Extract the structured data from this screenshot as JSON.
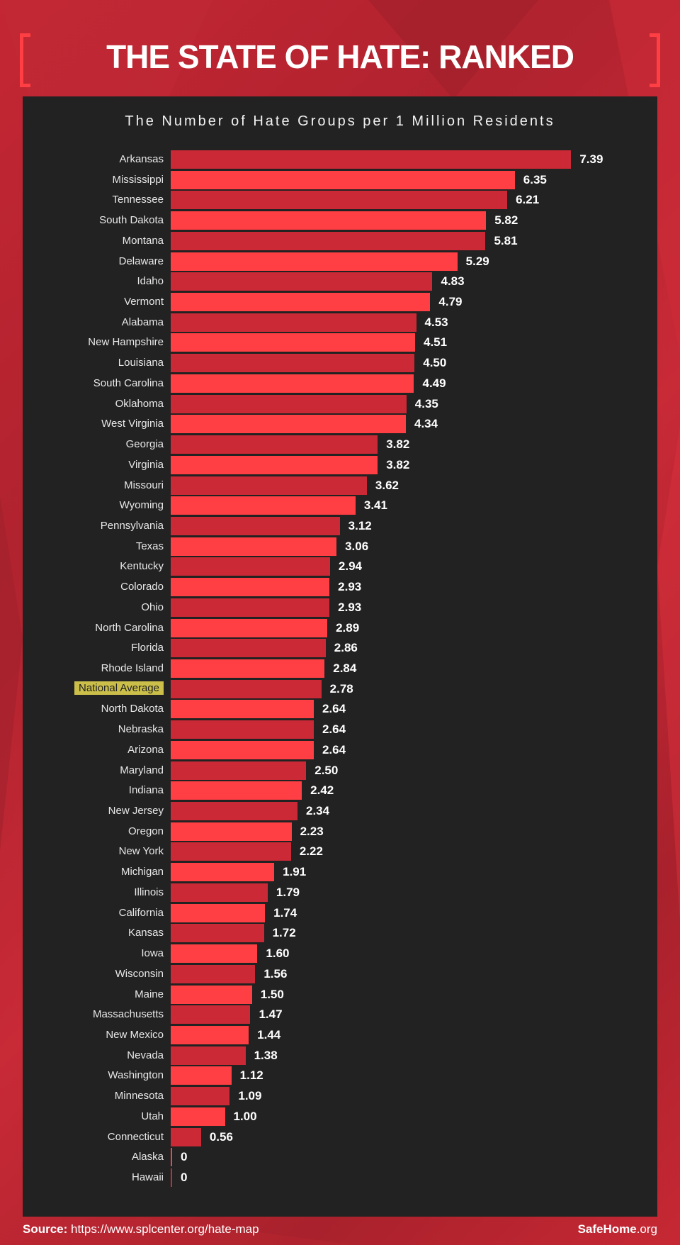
{
  "header": {
    "title": "THE STATE OF HATE: RANKED"
  },
  "chart_data": {
    "type": "bar",
    "orientation": "horizontal",
    "title": "The Number of Hate Groups per 1 Million Residents",
    "xlabel": "",
    "ylabel": "",
    "highlight": "National Average",
    "colors": {
      "dark": "#cc2936",
      "bright": "#ff3f43",
      "highlight": "#cbbf4a"
    },
    "categories": [
      "Arkansas",
      "Mississippi",
      "Tennessee",
      "South Dakota",
      "Montana",
      "Delaware",
      "Idaho",
      "Vermont",
      "Alabama",
      "New Hampshire",
      "Louisiana",
      "South Carolina",
      "Oklahoma",
      "West Virginia",
      "Georgia",
      "Virginia",
      "Missouri",
      "Wyoming",
      "Pennsylvania",
      "Texas",
      "Kentucky",
      "Colorado",
      "Ohio",
      "North Carolina",
      "Florida",
      "Rhode Island",
      "National Average",
      "North Dakota",
      "Nebraska",
      "Arizona",
      "Maryland",
      "Indiana",
      "New Jersey",
      "Oregon",
      "New York",
      "Michigan",
      "Illinois",
      "California",
      "Kansas",
      "Iowa",
      "Wisconsin",
      "Maine",
      "Massachusetts",
      "New Mexico",
      "Nevada",
      "Washington",
      "Minnesota",
      "Utah",
      "Connecticut",
      "Alaska",
      "Hawaii"
    ],
    "values": [
      7.39,
      6.35,
      6.21,
      5.82,
      5.81,
      5.29,
      4.83,
      4.79,
      4.53,
      4.51,
      4.5,
      4.49,
      4.35,
      4.34,
      3.82,
      3.82,
      3.62,
      3.41,
      3.12,
      3.06,
      2.94,
      2.93,
      2.93,
      2.89,
      2.86,
      2.84,
      2.78,
      2.64,
      2.64,
      2.64,
      2.5,
      2.42,
      2.34,
      2.23,
      2.22,
      1.91,
      1.79,
      1.74,
      1.72,
      1.6,
      1.56,
      1.5,
      1.47,
      1.44,
      1.38,
      1.12,
      1.09,
      1.0,
      0.56,
      0,
      0
    ],
    "value_labels": [
      "7.39",
      "6.35",
      "6.21",
      "5.82",
      "5.81",
      "5.29",
      "4.83",
      "4.79",
      "4.53",
      "4.51",
      "4.50",
      "4.49",
      "4.35",
      "4.34",
      "3.82",
      "3.82",
      "3.62",
      "3.41",
      "3.12",
      "3.06",
      "2.94",
      "2.93",
      "2.93",
      "2.89",
      "2.86",
      "2.84",
      "2.78",
      "2.64",
      "2.64",
      "2.64",
      "2.50",
      "2.42",
      "2.34",
      "2.23",
      "2.22",
      "1.91",
      "1.79",
      "1.74",
      "1.72",
      "1.60",
      "1.56",
      "1.50",
      "1.47",
      "1.44",
      "1.38",
      "1.12",
      "1.09",
      "1.00",
      "0.56",
      "0",
      "0"
    ]
  },
  "footer": {
    "source_label": "Source:",
    "source_url": "https://www.splcenter.org/hate-map",
    "brand_bold": "SafeHome",
    "brand_suffix": ".org"
  }
}
